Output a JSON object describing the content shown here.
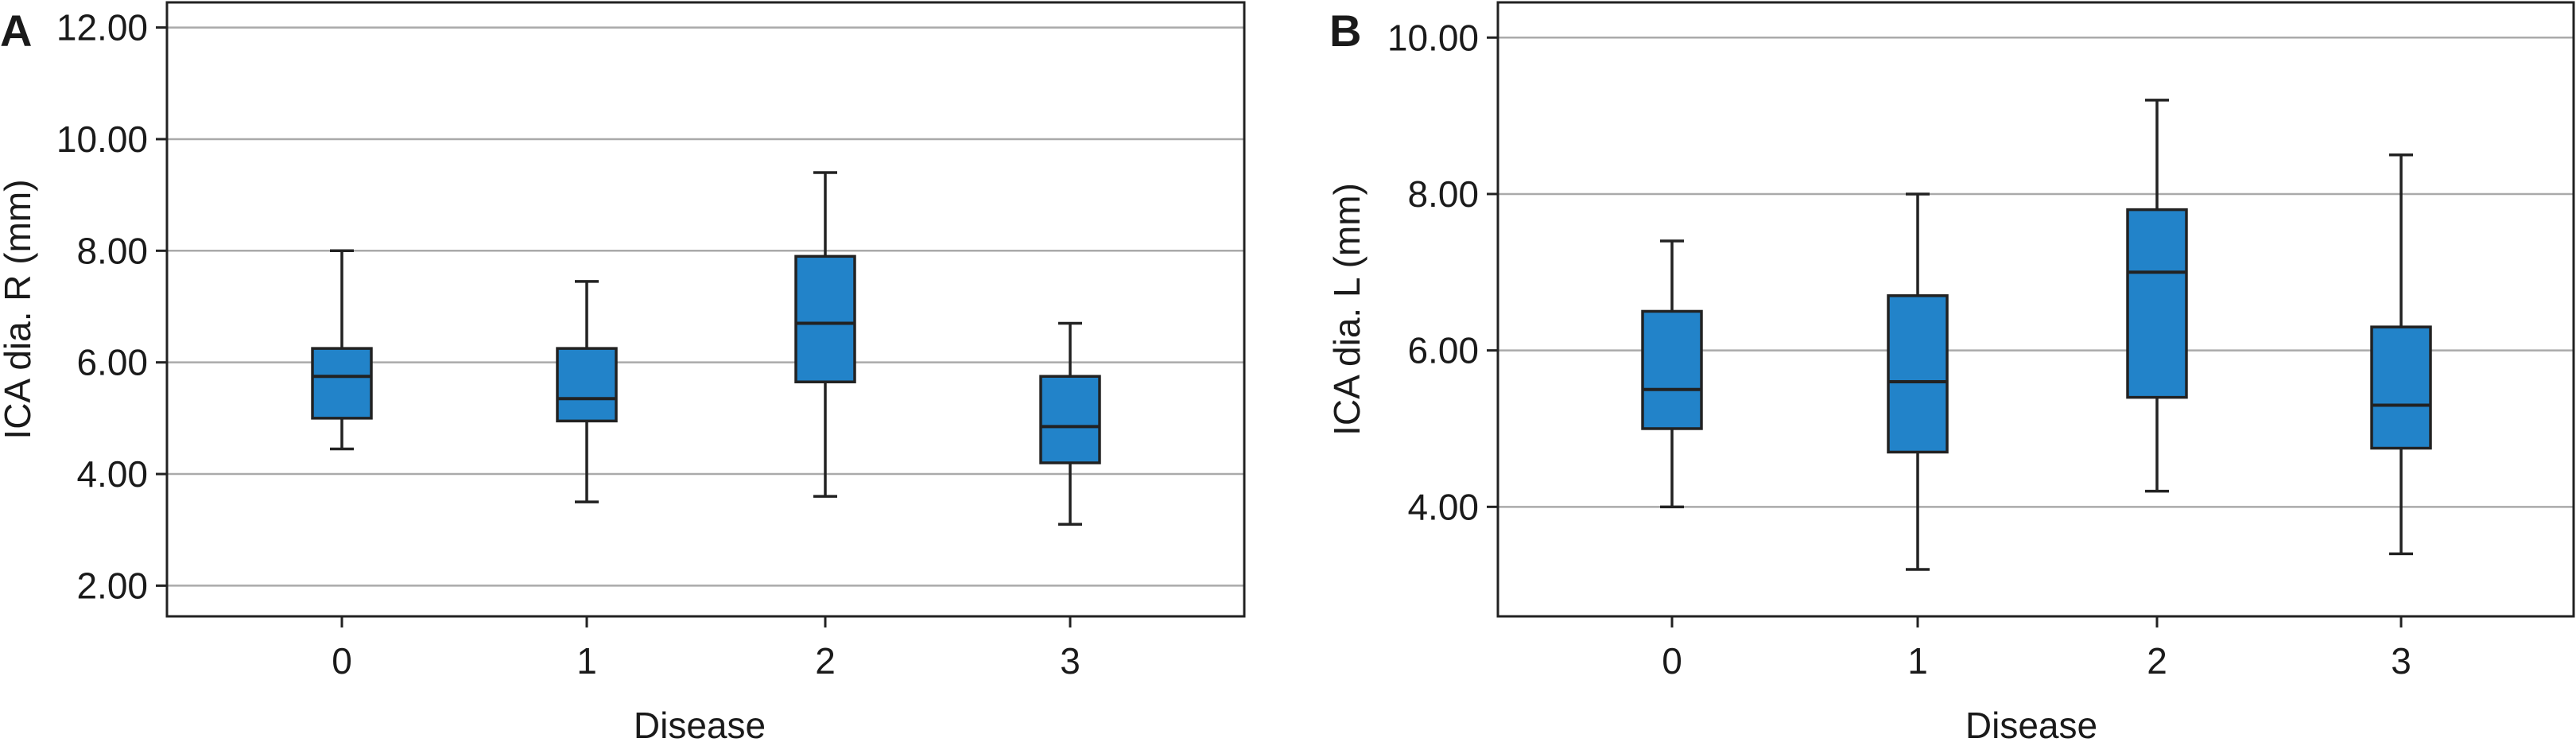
{
  "chart_data": [
    {
      "type": "box",
      "panel_label": "A",
      "title": "",
      "xlabel": "Disease",
      "ylabel": "ICA dia. R (mm)",
      "categories": [
        "0",
        "1",
        "2",
        "3"
      ],
      "ylim": [
        1.45,
        12.45
      ],
      "yticks": [
        2,
        4,
        6,
        8,
        10,
        12
      ],
      "ytick_labels": [
        "2.00",
        "4.00",
        "6.00",
        "8.00",
        "10.00",
        "12.00"
      ],
      "grid": "horizontal",
      "box_color": "#2283c9",
      "boxes": [
        {
          "category": "0",
          "whisker_low": 4.45,
          "q1": 5.0,
          "median": 5.75,
          "q3": 6.25,
          "whisker_high": 8.0
        },
        {
          "category": "1",
          "whisker_low": 3.5,
          "q1": 4.95,
          "median": 5.35,
          "q3": 6.25,
          "whisker_high": 7.45
        },
        {
          "category": "2",
          "whisker_low": 3.6,
          "q1": 5.65,
          "median": 6.7,
          "q3": 7.9,
          "whisker_high": 9.4
        },
        {
          "category": "3",
          "whisker_low": 3.1,
          "q1": 4.2,
          "median": 4.85,
          "q3": 5.75,
          "whisker_high": 6.7
        }
      ]
    },
    {
      "type": "box",
      "panel_label": "B",
      "title": "",
      "xlabel": "Disease",
      "ylabel": "ICA dia. L (mm)",
      "categories": [
        "0",
        "1",
        "2",
        "3"
      ],
      "ylim": [
        2.6,
        10.45
      ],
      "yticks": [
        4,
        6,
        8,
        10
      ],
      "ytick_labels": [
        "4.00",
        "6.00",
        "8.00",
        "10.00"
      ],
      "grid": "horizontal",
      "box_color": "#2283c9",
      "boxes": [
        {
          "category": "0",
          "whisker_low": 4.0,
          "q1": 5.0,
          "median": 5.5,
          "q3": 6.5,
          "whisker_high": 7.4
        },
        {
          "category": "1",
          "whisker_low": 3.2,
          "q1": 4.7,
          "median": 5.6,
          "q3": 6.7,
          "whisker_high": 8.0
        },
        {
          "category": "2",
          "whisker_low": 4.2,
          "q1": 5.4,
          "median": 7.0,
          "q3": 7.8,
          "whisker_high": 9.2
        },
        {
          "category": "3",
          "whisker_low": 3.4,
          "q1": 4.75,
          "median": 5.3,
          "q3": 6.3,
          "whisker_high": 8.5
        }
      ]
    }
  ]
}
